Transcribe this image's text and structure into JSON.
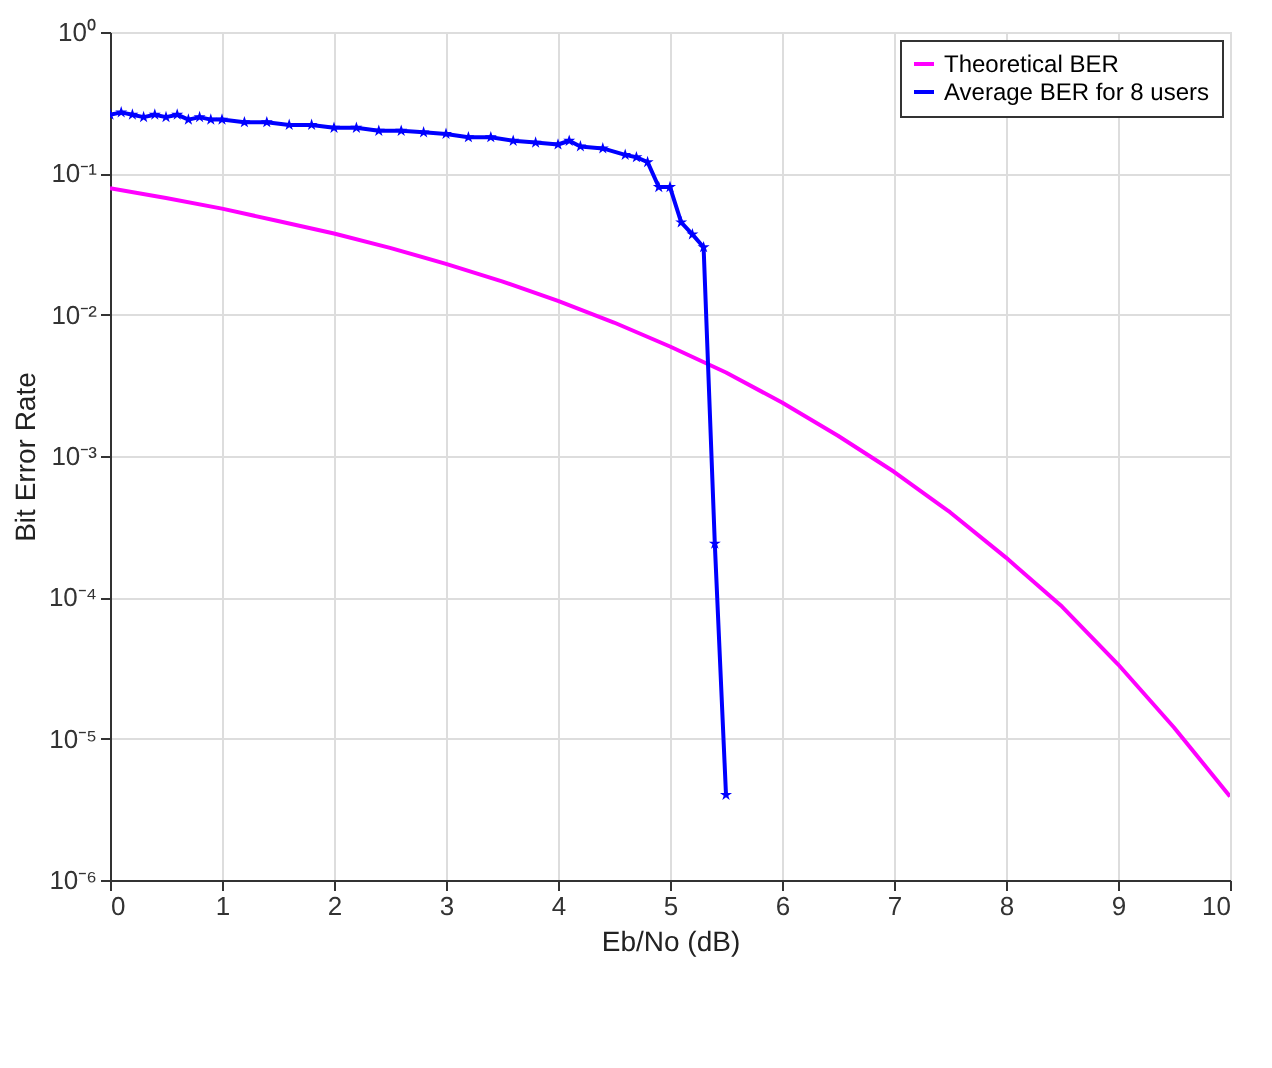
{
  "chart_data": {
    "type": "line",
    "xlabel": "Eb/No (dB)",
    "ylabel": "Bit Error Rate",
    "log": "y",
    "grid": true,
    "legend": "top right",
    "xlim": [
      0,
      10
    ],
    "xticks": [
      0,
      1,
      2,
      3,
      4,
      5,
      6,
      7,
      8,
      9,
      10
    ],
    "ylim": [
      1e-06,
      1
    ],
    "yticks": [
      {
        "value": 1e-06,
        "label": "10⁻⁶"
      },
      {
        "value": 1e-05,
        "label": "10⁻⁵"
      },
      {
        "value": 0.0001,
        "label": "10⁻⁴"
      },
      {
        "value": 0.001,
        "label": "10⁻³"
      },
      {
        "value": 0.01,
        "label": "10⁻²"
      },
      {
        "value": 0.1,
        "label": "10⁻¹"
      },
      {
        "value": 1,
        "label": "10⁰"
      }
    ],
    "series": [
      {
        "name": "Theoretical BER",
        "color": "#ff00ff",
        "marker": "none",
        "x": [
          0,
          0.5,
          1,
          1.5,
          2,
          2.5,
          3,
          3.5,
          4,
          4.5,
          5,
          5.5,
          6,
          6.5,
          7,
          7.5,
          8,
          8.5,
          9,
          9.5,
          10
        ],
        "values": [
          0.0786,
          0.067,
          0.0563,
          0.046,
          0.0375,
          0.0297,
          0.0229,
          0.0172,
          0.0125,
          0.0088,
          0.00595,
          0.0039,
          0.00239,
          0.00139,
          0.000773,
          0.0004,
          0.000191,
          8.6e-05,
          3.36e-05,
          1.2e-05,
          3.9e-06
        ]
      },
      {
        "name": "Average BER for 8 users",
        "color": "#0000ff",
        "marker": "star",
        "x": [
          0,
          0.1,
          0.2,
          0.3,
          0.4,
          0.5,
          0.6,
          0.7,
          0.8,
          0.9,
          1.0,
          1.2,
          1.4,
          1.6,
          1.8,
          2.0,
          2.2,
          2.4,
          2.6,
          2.8,
          3.0,
          3.2,
          3.4,
          3.6,
          3.8,
          4.0,
          4.1,
          4.2,
          4.4,
          4.6,
          4.7,
          4.8,
          4.9,
          5.0,
          5.1,
          5.2,
          5.3,
          5.4,
          5.5
        ],
        "values": [
          0.26,
          0.27,
          0.26,
          0.25,
          0.26,
          0.25,
          0.26,
          0.24,
          0.25,
          0.24,
          0.24,
          0.23,
          0.23,
          0.22,
          0.22,
          0.21,
          0.21,
          0.2,
          0.2,
          0.195,
          0.19,
          0.18,
          0.18,
          0.17,
          0.165,
          0.16,
          0.17,
          0.155,
          0.15,
          0.135,
          0.13,
          0.12,
          0.08,
          0.08,
          0.045,
          0.037,
          0.03,
          0.00024,
          4e-06
        ]
      }
    ]
  }
}
